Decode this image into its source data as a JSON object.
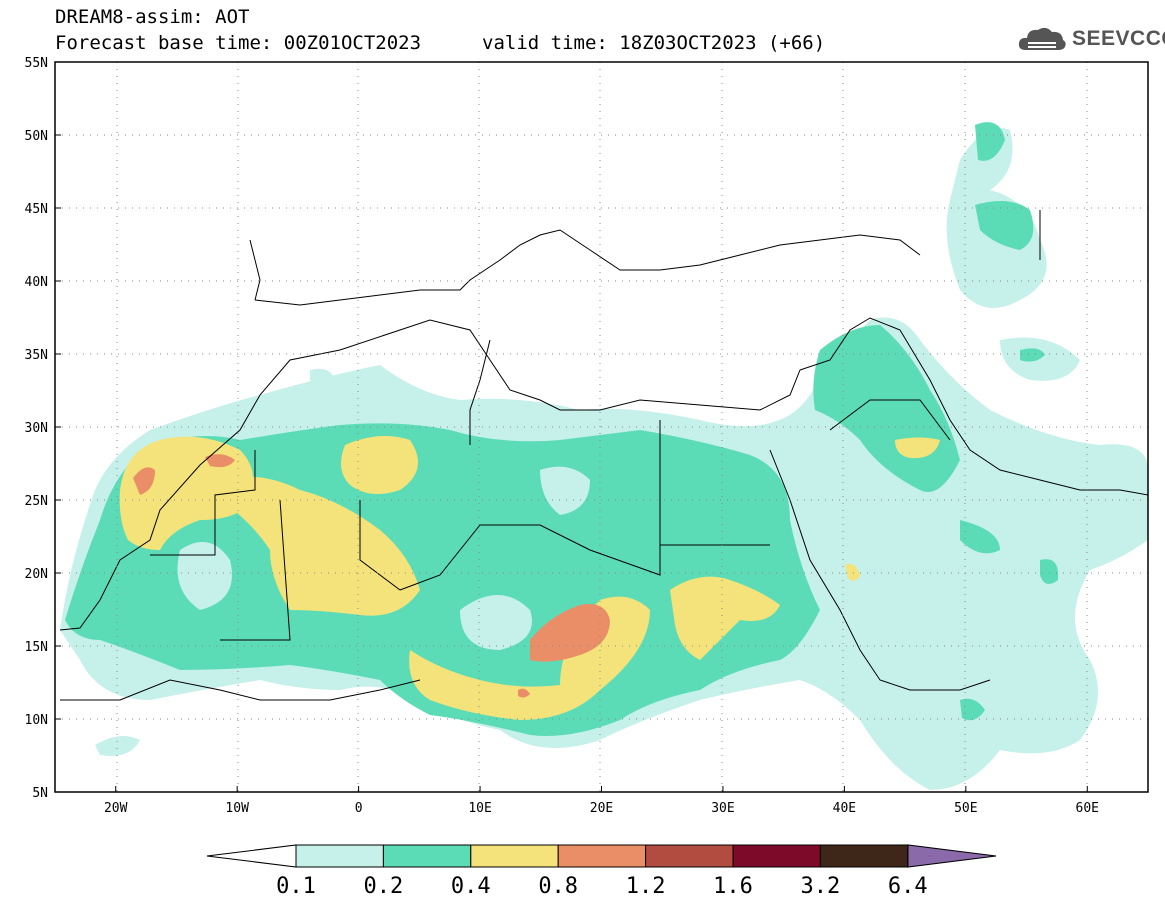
{
  "title": {
    "line1": "DREAM8-assim: AOT",
    "line2": "Forecast base time: 00Z01OCT2023",
    "valid": "valid time: 18Z03OCT2023 (+66)"
  },
  "logo": {
    "text": "SEEVCCC",
    "icon": "cloud-icon"
  },
  "map": {
    "lat_labels": [
      "55N",
      "50N",
      "45N",
      "40N",
      "35N",
      "30N",
      "25N",
      "20N",
      "15N",
      "10N",
      "5N"
    ],
    "lat_values": [
      55,
      50,
      45,
      40,
      35,
      30,
      25,
      20,
      15,
      10,
      5
    ],
    "lon_labels": [
      "20W",
      "10W",
      "0",
      "10E",
      "20E",
      "30E",
      "40E",
      "50E",
      "60E"
    ],
    "lon_values": [
      -20,
      -10,
      0,
      10,
      20,
      30,
      40,
      50,
      60
    ],
    "lon_range": [
      -25,
      65
    ],
    "lat_range": [
      5,
      55
    ]
  },
  "colorbar": {
    "levels": [
      "0.1",
      "0.2",
      "0.4",
      "0.8",
      "1.2",
      "1.6",
      "3.2",
      "6.4"
    ],
    "colors": [
      "#ffffff",
      "#c6f0ea",
      "#5cdcb6",
      "#f4e37a",
      "#ea8e68",
      "#b24c40",
      "#7c0a28",
      "#3e2618",
      "#8a6aa8"
    ]
  }
}
